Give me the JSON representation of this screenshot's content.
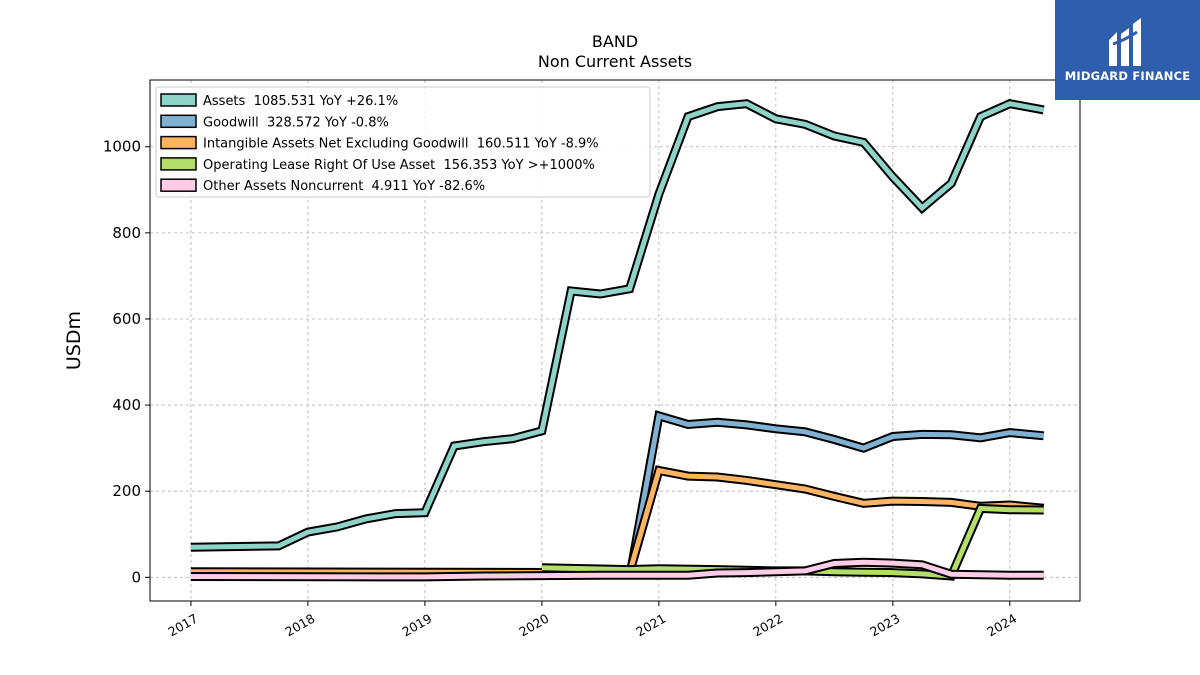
{
  "chart_data": {
    "type": "line",
    "title": "BAND",
    "subtitle": "Non Current  Assets",
    "ylabel": "USDm",
    "xlabel": "",
    "ylim": [
      -55,
      1155
    ],
    "xlim": [
      2016.65,
      2024.6
    ],
    "yticks": [
      0,
      200,
      400,
      600,
      800,
      1000
    ],
    "xticks": [
      "2017",
      "2018",
      "2019",
      "2020",
      "2021",
      "2022",
      "2023",
      "2024"
    ],
    "grid": true,
    "legend_position": "top-left",
    "series": [
      {
        "name": "Assets  1085.531 YoY +26.1%",
        "color": "#8dd3c7",
        "points": [
          [
            2017.0,
            70
          ],
          [
            2017.75,
            73
          ],
          [
            2018.0,
            105
          ],
          [
            2018.25,
            117
          ],
          [
            2018.5,
            136
          ],
          [
            2018.75,
            148
          ],
          [
            2019.0,
            150
          ],
          [
            2019.25,
            305
          ],
          [
            2019.5,
            315
          ],
          [
            2019.75,
            322
          ],
          [
            2020.0,
            340
          ],
          [
            2020.25,
            665
          ],
          [
            2020.5,
            658
          ],
          [
            2020.75,
            670
          ],
          [
            2021.0,
            890
          ],
          [
            2021.25,
            1070
          ],
          [
            2021.5,
            1093
          ],
          [
            2021.75,
            1100
          ],
          [
            2022.0,
            1065
          ],
          [
            2022.25,
            1052
          ],
          [
            2022.5,
            1025
          ],
          [
            2022.75,
            1010
          ],
          [
            2023.0,
            930
          ],
          [
            2023.25,
            858
          ],
          [
            2023.5,
            915
          ],
          [
            2023.75,
            1070
          ],
          [
            2024.0,
            1100
          ],
          [
            2024.29,
            1085.531
          ]
        ]
      },
      {
        "name": "Goodwill  328.572 YoY -0.8%",
        "color": "#80b1d3",
        "points": [
          [
            2020.75,
            0
          ],
          [
            2021.0,
            375
          ],
          [
            2021.25,
            355
          ],
          [
            2021.5,
            360
          ],
          [
            2021.75,
            354
          ],
          [
            2022.0,
            345
          ],
          [
            2022.25,
            338
          ],
          [
            2022.5,
            320
          ],
          [
            2022.75,
            300
          ],
          [
            2023.0,
            327
          ],
          [
            2023.25,
            332
          ],
          [
            2023.5,
            331
          ],
          [
            2023.75,
            324
          ],
          [
            2024.0,
            336
          ],
          [
            2024.29,
            328.572
          ]
        ]
      },
      {
        "name": "Intangible Assets Net Excluding Goodwill  160.511 YoY -8.9%",
        "color": "#fdb462",
        "points": [
          [
            2017.0,
            13
          ],
          [
            2020.75,
            11
          ],
          [
            2021.0,
            248
          ],
          [
            2021.25,
            235
          ],
          [
            2021.5,
            233
          ],
          [
            2021.75,
            225
          ],
          [
            2022.0,
            215
          ],
          [
            2022.25,
            205
          ],
          [
            2022.5,
            188
          ],
          [
            2022.75,
            172
          ],
          [
            2023.0,
            177
          ],
          [
            2023.25,
            176
          ],
          [
            2023.5,
            174
          ],
          [
            2023.75,
            165
          ],
          [
            2024.0,
            168
          ],
          [
            2024.29,
            160.511
          ]
        ]
      },
      {
        "name": "Operating Lease Right Of Use Asset  156.353 YoY >+1000%",
        "color": "#b3de69",
        "points": [
          [
            2020.0,
            22
          ],
          [
            2020.75,
            18
          ],
          [
            2021.0,
            20
          ],
          [
            2021.5,
            18
          ],
          [
            2022.0,
            15
          ],
          [
            2022.25,
            15
          ],
          [
            2022.5,
            13
          ],
          [
            2022.75,
            12
          ],
          [
            2023.0,
            11
          ],
          [
            2023.25,
            8
          ],
          [
            2023.5,
            3
          ],
          [
            2023.75,
            160
          ],
          [
            2024.0,
            157
          ],
          [
            2024.29,
            156.353
          ]
        ]
      },
      {
        "name": "Other Assets Noncurrent  4.911 YoY -82.6%",
        "color": "#fccde5",
        "points": [
          [
            2017.0,
            2
          ],
          [
            2019.0,
            1
          ],
          [
            2019.5,
            3
          ],
          [
            2020.0,
            4
          ],
          [
            2020.5,
            5
          ],
          [
            2021.0,
            5
          ],
          [
            2021.25,
            5
          ],
          [
            2021.5,
            10
          ],
          [
            2021.75,
            11
          ],
          [
            2022.0,
            13
          ],
          [
            2022.25,
            15
          ],
          [
            2022.5,
            32
          ],
          [
            2022.75,
            35
          ],
          [
            2023.0,
            33
          ],
          [
            2023.25,
            29
          ],
          [
            2023.5,
            7
          ],
          [
            2023.75,
            6
          ],
          [
            2024.0,
            5
          ],
          [
            2024.29,
            4.911
          ]
        ]
      }
    ]
  },
  "brand": {
    "logo_text": "MIDGARD FINANCE",
    "color": "#2f5eae"
  }
}
